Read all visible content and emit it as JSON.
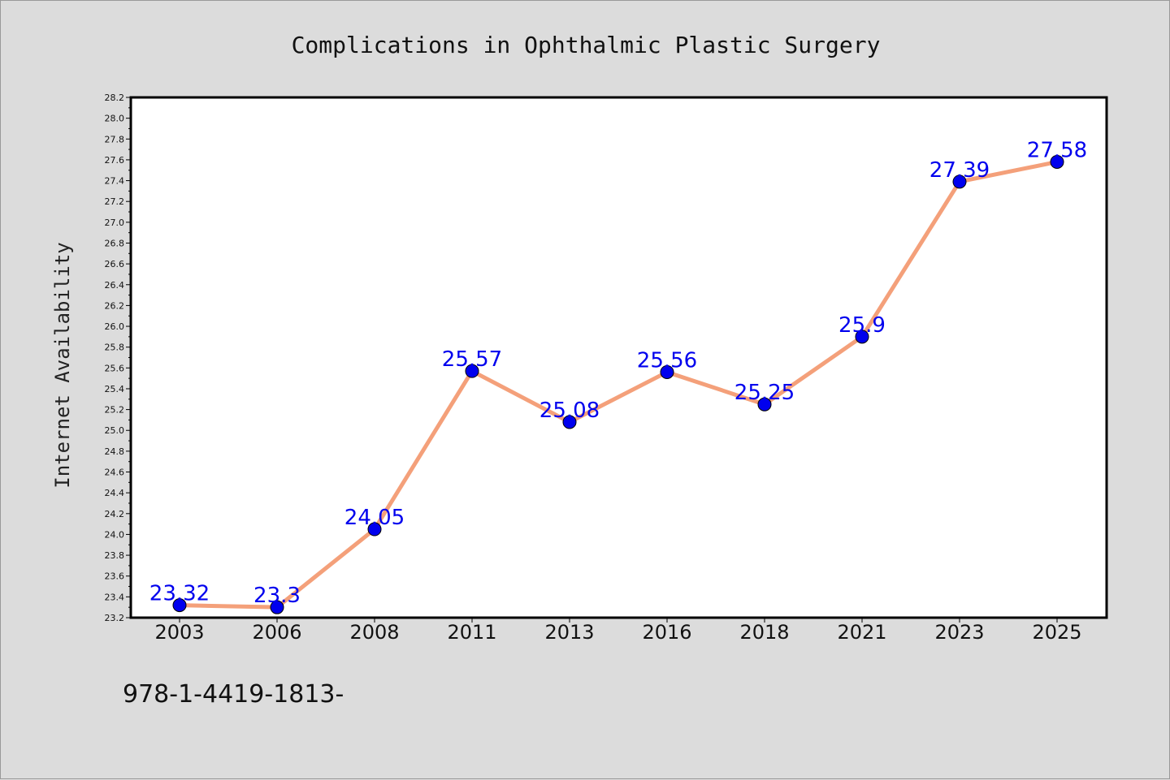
{
  "chart_data": {
    "type": "line",
    "title": "Complications in Ophthalmic Plastic Surgery",
    "xlabel": "",
    "ylabel": "Internet Availability",
    "categories": [
      "2003",
      "2006",
      "2008",
      "2011",
      "2013",
      "2016",
      "2018",
      "2021",
      "2023",
      "2025"
    ],
    "series": [
      {
        "values": [
          23.32,
          23.3,
          24.05,
          25.57,
          25.08,
          25.56,
          25.25,
          25.9,
          27.39,
          27.58
        ],
        "data_labels": [
          "23.32",
          "23.3",
          "24.05",
          "25.57",
          "25.08",
          "25.56",
          "25.25",
          "25.9",
          "27.39",
          "27.58"
        ]
      }
    ],
    "ylim": [
      23.2,
      28.2
    ],
    "yticks": [
      "23.2",
      "23.4",
      "23.6",
      "23.8",
      "24.0",
      "24.2",
      "24.4",
      "24.6",
      "24.8",
      "25.0",
      "25.2",
      "25.4",
      "25.6",
      "25.8",
      "26.0",
      "26.2",
      "26.4",
      "26.6",
      "26.8",
      "27.0",
      "27.2",
      "27.4",
      "27.6",
      "27.8",
      "28.0",
      "28.2"
    ],
    "grid": false,
    "legend": "none",
    "colors": {
      "line": "#f4a07a",
      "marker": "#0000ee",
      "data_label": "#0000ee",
      "plot_background": "#ffffff",
      "figure_background": "#dcdcdc"
    }
  },
  "footer": {
    "text": "978-1-4419-1813-"
  }
}
